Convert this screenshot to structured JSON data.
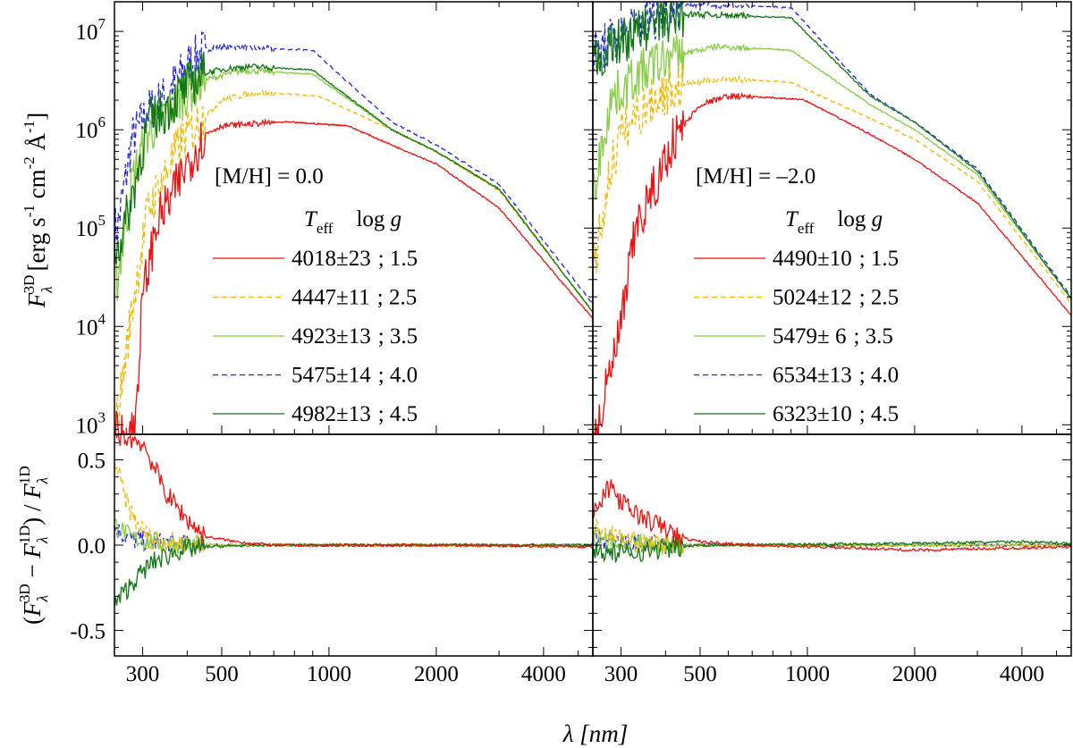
{
  "chart_data": {
    "type": "line",
    "xlabel": "λ [nm]",
    "x_scale": "log",
    "xlim": [
      250,
      5500
    ],
    "x_ticks": [
      300,
      500,
      1000,
      2000,
      4000
    ],
    "ylabel_top": "F_λ^3D [erg s^-1 cm^-2 Å^-1]",
    "ylabel_top_parts": {
      "sym": "F",
      "sub": "λ",
      "sup": "3D",
      "units": "[erg s",
      "u_sup1": "-1",
      "u_cm": " cm",
      "u_sup2": "-2",
      "u_A": " Å",
      "u_sup3": "-1",
      "close": "]"
    },
    "ylabel_bottom": "(F_λ^3D − F_λ^1D) / F_λ^1D",
    "ylabel_bottom_parts": {
      "open": "(",
      "sym": "F",
      "sub": "λ",
      "sup3d": "3D",
      "minus": " − ",
      "sup1d": "1D",
      "close": ") / "
    },
    "y_top_scale": "log",
    "y_top_lim": [
      800,
      20000000
    ],
    "y_top_ticks": [
      {
        "value": 1000,
        "base": "10",
        "exp": "3"
      },
      {
        "value": 10000,
        "base": "10",
        "exp": "4"
      },
      {
        "value": 100000,
        "base": "10",
        "exp": "5"
      },
      {
        "value": 1000000,
        "base": "10",
        "exp": "6"
      },
      {
        "value": 10000000,
        "base": "10",
        "exp": "7"
      }
    ],
    "y_bottom_lim": [
      -0.65,
      0.65
    ],
    "y_bottom_ticks": [
      {
        "value": 0.5,
        "label": "0.5"
      },
      {
        "value": 0.0,
        "label": "0.0"
      },
      {
        "value": -0.5,
        "label": "-0.5"
      }
    ],
    "legend_header": {
      "teff_sym": "T",
      "teff_sub": "eff",
      "logg": "log ",
      "g": "g"
    },
    "series_colors": [
      "#ee1111",
      "#f5b800",
      "#88cc44",
      "#2222ee",
      "#117711"
    ],
    "series_dash": [
      "solid",
      "dashed",
      "solid",
      "dashed",
      "solid"
    ],
    "panels": [
      {
        "title": "[M/H] = 0.0",
        "series": [
          {
            "teff": "4018±23",
            "logg": "; 1.5",
            "peak": 1200000,
            "wpeak": 750,
            "short": [
              [
                255,
                800
              ],
              [
                285,
                900
              ],
              [
                300,
                20000
              ],
              [
                330,
                120000
              ],
              [
                360,
                200000
              ],
              [
                400,
                450000
              ],
              [
                450,
                900000
              ],
              [
                500,
                1100000
              ]
            ],
            "ratio": [
              [
                250,
                0.65
              ],
              [
                300,
                0.6
              ],
              [
                350,
                0.3
              ],
              [
                400,
                0.15
              ],
              [
                450,
                0.05
              ],
              [
                550,
                0.02
              ],
              [
                700,
                0.0
              ],
              [
                2500,
                0.0
              ],
              [
                5500,
                -0.01
              ]
            ],
            "longtail": [
              [
                1500,
                700000
              ],
              [
                2000,
                450000
              ],
              [
                3000,
                160000
              ],
              [
                5500,
                12000
              ]
            ]
          },
          {
            "teff": "4447±11",
            "logg": "; 2.5",
            "peak": 2400000,
            "wpeak": 620,
            "short": [
              [
                255,
                1200
              ],
              [
                280,
                15000
              ],
              [
                310,
                150000
              ],
              [
                340,
                300000
              ],
              [
                380,
                700000
              ],
              [
                430,
                1200000
              ],
              [
                500,
                2000000
              ]
            ],
            "ratio": [
              [
                250,
                0.5
              ],
              [
                270,
                0.25
              ],
              [
                290,
                0.12
              ],
              [
                320,
                0.03
              ],
              [
                400,
                0.01
              ],
              [
                500,
                0.0
              ],
              [
                5500,
                -0.005
              ]
            ],
            "longtail": [
              [
                1500,
                1000000
              ],
              [
                2000,
                600000
              ],
              [
                3000,
                240000
              ],
              [
                5500,
                14000
              ]
            ]
          },
          {
            "teff": "4923±13",
            "logg": "; 3.5",
            "peak": 4000000,
            "wpeak": 580,
            "short": [
              [
                255,
                30000
              ],
              [
                280,
                300000
              ],
              [
                310,
                900000
              ],
              [
                350,
                1500000
              ],
              [
                400,
                2400000
              ],
              [
                450,
                3200000
              ],
              [
                520,
                3700000
              ]
            ],
            "ratio": [
              [
                250,
                0.12
              ],
              [
                280,
                0.04
              ],
              [
                320,
                0.02
              ],
              [
                400,
                0.0
              ],
              [
                5500,
                0.0
              ]
            ],
            "longtail": [
              [
                1500,
                1000000
              ],
              [
                2000,
                600000
              ],
              [
                3000,
                250000
              ],
              [
                5500,
                14000
              ]
            ]
          },
          {
            "teff": "5475±14",
            "logg": "; 4.0",
            "peak": 7000000,
            "wpeak": 480,
            "short": [
              [
                255,
                100000
              ],
              [
                280,
                800000
              ],
              [
                310,
                1500000
              ],
              [
                350,
                2200000
              ],
              [
                400,
                4500000
              ],
              [
                450,
                6500000
              ]
            ],
            "ratio": [
              [
                250,
                0.1
              ],
              [
                280,
                0.03
              ],
              [
                320,
                0.02
              ],
              [
                400,
                0.0
              ],
              [
                5500,
                0.0
              ]
            ],
            "longtail": [
              [
                1500,
                1200000
              ],
              [
                2000,
                700000
              ],
              [
                3000,
                280000
              ],
              [
                5500,
                17000
              ]
            ]
          },
          {
            "teff": "4982±13",
            "logg": "; 4.5",
            "peak": 4400000,
            "wpeak": 600,
            "short": [
              [
                255,
                60000
              ],
              [
                280,
                200000
              ],
              [
                310,
                1200000
              ],
              [
                350,
                1600000
              ],
              [
                400,
                2800000
              ],
              [
                450,
                3800000
              ],
              [
                520,
                4200000
              ]
            ],
            "ratio": [
              [
                250,
                -0.35
              ],
              [
                280,
                -0.22
              ],
              [
                320,
                -0.1
              ],
              [
                380,
                -0.03
              ],
              [
                450,
                -0.01
              ],
              [
                600,
                0.0
              ],
              [
                5500,
                0.0
              ]
            ],
            "longtail": [
              [
                1500,
                1000000
              ],
              [
                2000,
                600000
              ],
              [
                3000,
                250000
              ],
              [
                5500,
                14000
              ]
            ]
          }
        ]
      },
      {
        "title": "[M/H] = –2.0",
        "series": [
          {
            "teff": "4490±10",
            "logg": ";  1.5",
            "peak": 2200000,
            "wpeak": 650,
            "short": [
              [
                255,
                800
              ],
              [
                300,
                10000
              ],
              [
                330,
                100000
              ],
              [
                380,
                300000
              ],
              [
                420,
                800000
              ],
              [
                500,
                1800000
              ],
              [
                600,
                2200000
              ]
            ],
            "ratio": [
              [
                255,
                0.2
              ],
              [
                280,
                0.35
              ],
              [
                300,
                0.25
              ],
              [
                350,
                0.15
              ],
              [
                400,
                0.1
              ],
              [
                430,
                0.05
              ],
              [
                500,
                0.02
              ],
              [
                700,
                0.0
              ],
              [
                1500,
                -0.02
              ],
              [
                2000,
                -0.03
              ],
              [
                5500,
                -0.01
              ]
            ],
            "longtail": [
              [
                1500,
                900000
              ],
              [
                2000,
                500000
              ],
              [
                3000,
                180000
              ],
              [
                5500,
                13000
              ]
            ]
          },
          {
            "teff": "5024±12",
            "logg": ";  2.5",
            "peak": 3300000,
            "wpeak": 600,
            "short": [
              [
                255,
                50000
              ],
              [
                280,
                400000
              ],
              [
                300,
                900000
              ],
              [
                330,
                1400000
              ],
              [
                380,
                2200000
              ],
              [
                450,
                2900000
              ]
            ],
            "ratio": [
              [
                255,
                0.1
              ],
              [
                300,
                0.04
              ],
              [
                350,
                0.01
              ],
              [
                500,
                0.0
              ],
              [
                5500,
                0.0
              ]
            ],
            "longtail": [
              [
                1500,
                1300000
              ],
              [
                2000,
                800000
              ],
              [
                3000,
                300000
              ],
              [
                5500,
                17000
              ]
            ]
          },
          {
            "teff": "5479± 6",
            "logg": ";  3.5",
            "peak": 7000000,
            "wpeak": 560,
            "short": [
              [
                255,
                300000
              ],
              [
                280,
                2000000
              ],
              [
                300,
                2500000
              ],
              [
                330,
                3500000
              ],
              [
                380,
                4800000
              ],
              [
                450,
                6000000
              ]
            ],
            "ratio": [
              [
                255,
                0.05
              ],
              [
                300,
                0.02
              ],
              [
                400,
                0.0
              ],
              [
                5500,
                0.0
              ]
            ],
            "longtail": [
              [
                1500,
                1800000
              ],
              [
                2000,
                1000000
              ],
              [
                3000,
                350000
              ],
              [
                5500,
                19000
              ]
            ]
          },
          {
            "teff": "6534±13",
            "logg": ";  4.0",
            "peak": 19000000,
            "wpeak": 440,
            "short": [
              [
                255,
                6000000
              ],
              [
                280,
                8000000
              ],
              [
                300,
                9000000
              ],
              [
                330,
                11000000
              ],
              [
                380,
                15000000
              ],
              [
                420,
                18000000
              ]
            ],
            "ratio": [
              [
                255,
                0.03
              ],
              [
                300,
                0.01
              ],
              [
                400,
                0.0
              ],
              [
                5500,
                0.0
              ]
            ],
            "longtail": [
              [
                1500,
                2300000
              ],
              [
                2000,
                1200000
              ],
              [
                3000,
                400000
              ],
              [
                5500,
                20000
              ]
            ]
          },
          {
            "teff": "6323±10",
            "logg": ";  4.5",
            "peak": 15000000,
            "wpeak": 460,
            "short": [
              [
                255,
                5000000
              ],
              [
                280,
                7000000
              ],
              [
                300,
                8000000
              ],
              [
                330,
                10000000
              ],
              [
                380,
                12000000
              ],
              [
                420,
                14000000
              ]
            ],
            "ratio": [
              [
                255,
                -0.03
              ],
              [
                300,
                -0.05
              ],
              [
                400,
                -0.02
              ],
              [
                500,
                0.0
              ],
              [
                2000,
                0.01
              ],
              [
                4000,
                0.02
              ],
              [
                5500,
                0.01
              ]
            ],
            "longtail": [
              [
                1500,
                2200000
              ],
              [
                2000,
                1200000
              ],
              [
                3000,
                380000
              ],
              [
                5500,
                19000
              ]
            ]
          }
        ]
      }
    ]
  }
}
